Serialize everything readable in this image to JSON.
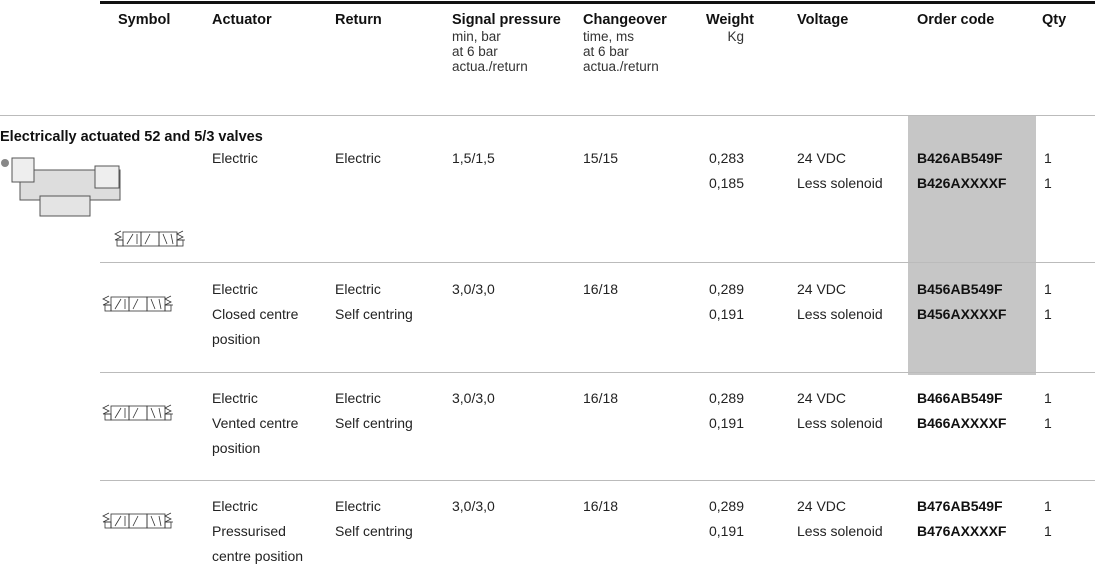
{
  "header": {
    "columns": [
      {
        "title": "Symbol"
      },
      {
        "title": "Actuator"
      },
      {
        "title": "Return"
      },
      {
        "title": "Signal pressure",
        "sub": [
          "min, bar",
          "at  6 bar",
          "actua./return"
        ]
      },
      {
        "title": "Changeover",
        "sub": [
          "time, ms",
          "at 6 bar",
          "actua./return"
        ]
      },
      {
        "title": "Weight",
        "sub": [
          "Kg"
        ]
      },
      {
        "title": "Voltage"
      },
      {
        "title": "Order code"
      },
      {
        "title": "Qty"
      }
    ]
  },
  "section": {
    "title": "Electrically actuated 52 and 5/3 valves"
  },
  "rows": [
    {
      "actuator": [
        "Electric"
      ],
      "return": [
        "Electric"
      ],
      "signal_pressure": "1,5/1,5",
      "changeover": "15/15",
      "weight": [
        "0,283",
        "0,185"
      ],
      "voltage": [
        "24 VDC",
        "Less solenoid"
      ],
      "order_code": [
        "B426AB549F",
        "B426AXXXXF"
      ],
      "qty": [
        "1",
        "1"
      ]
    },
    {
      "actuator": [
        "Electric",
        "Closed centre",
        "position"
      ],
      "return": [
        "Electric",
        "Self centring"
      ],
      "signal_pressure": "3,0/3,0",
      "changeover": "16/18",
      "weight": [
        "0,289",
        "0,191"
      ],
      "voltage": [
        "24 VDC",
        "Less solenoid"
      ],
      "order_code": [
        "B456AB549F",
        "B456AXXXXF"
      ],
      "qty": [
        "1",
        "1"
      ]
    },
    {
      "actuator": [
        "Electric",
        "Vented centre",
        "position"
      ],
      "return": [
        "Electric",
        "Self centring"
      ],
      "signal_pressure": "3,0/3,0",
      "changeover": "16/18",
      "weight": [
        "0,289",
        "0,191"
      ],
      "voltage": [
        "24 VDC",
        "Less solenoid"
      ],
      "order_code": [
        "B466AB549F",
        "B466AXXXXF"
      ],
      "qty": [
        "1",
        "1"
      ]
    },
    {
      "actuator": [
        "Electric",
        "Pressurised",
        "centre position"
      ],
      "return": [
        "Electric",
        "Self centring"
      ],
      "signal_pressure": "3,0/3,0",
      "changeover": "16/18",
      "weight": [
        "0,289",
        "0,191"
      ],
      "voltage": [
        "24 VDC",
        "Less solenoid"
      ],
      "order_code": [
        "B476AB549F",
        "B476AXXXXF"
      ],
      "qty": [
        "1",
        "1"
      ]
    }
  ]
}
